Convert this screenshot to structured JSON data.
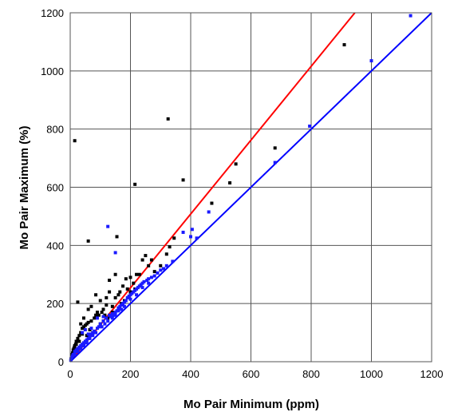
{
  "chart_data": {
    "type": "scatter",
    "title": "",
    "xlabel": "Mo Pair Minimum (ppm)",
    "ylabel": "Mo Pair Maximum (%)",
    "xlim": [
      0,
      1200
    ],
    "ylim": [
      0,
      1200
    ],
    "x_ticks": [
      0,
      200,
      400,
      600,
      800,
      1000,
      1200
    ],
    "y_ticks": [
      0,
      200,
      400,
      600,
      800,
      1000,
      1200
    ],
    "grid": true,
    "colors": {
      "grid": "#555555",
      "black_series": "#000000",
      "blue_series": "#1a1aff",
      "red_line": "#ff0000",
      "blue_line": "#0000ff"
    },
    "lines": [
      {
        "name": "red-reference-line",
        "color": "#ff0000",
        "x": [
          0,
          945
        ],
        "y": [
          0,
          1200
        ]
      },
      {
        "name": "blue-reference-line",
        "color": "#0000ff",
        "x": [
          0,
          1200
        ],
        "y": [
          0,
          1200
        ]
      }
    ],
    "series": [
      {
        "name": "black",
        "color": "#000000",
        "points": [
          [
            15,
            760
          ],
          [
            325,
            835
          ],
          [
            215,
            610
          ],
          [
            375,
            625
          ],
          [
            60,
            415
          ],
          [
            155,
            430
          ],
          [
            910,
            1090
          ],
          [
            680,
            735
          ],
          [
            550,
            680
          ],
          [
            530,
            615
          ],
          [
            470,
            545
          ],
          [
            345,
            425
          ],
          [
            330,
            395
          ],
          [
            250,
            365
          ],
          [
            240,
            350
          ],
          [
            270,
            350
          ],
          [
            280,
            310
          ],
          [
            220,
            300
          ],
          [
            200,
            290
          ],
          [
            185,
            285
          ],
          [
            175,
            260
          ],
          [
            160,
            230
          ],
          [
            150,
            220
          ],
          [
            130,
            240
          ],
          [
            120,
            195
          ],
          [
            110,
            180
          ],
          [
            90,
            170
          ],
          [
            85,
            160
          ],
          [
            80,
            150
          ],
          [
            70,
            140
          ],
          [
            60,
            135
          ],
          [
            55,
            130
          ],
          [
            50,
            125
          ],
          [
            45,
            120
          ],
          [
            40,
            115
          ],
          [
            35,
            100
          ],
          [
            30,
            90
          ],
          [
            25,
            80
          ],
          [
            20,
            70
          ],
          [
            18,
            60
          ],
          [
            14,
            50
          ],
          [
            12,
            45
          ],
          [
            10,
            40
          ],
          [
            8,
            30
          ],
          [
            6,
            25
          ],
          [
            5,
            20
          ],
          [
            4,
            15
          ],
          [
            3,
            10
          ],
          [
            25,
            205
          ],
          [
            45,
            150
          ],
          [
            35,
            130
          ],
          [
            60,
            180
          ],
          [
            70,
            190
          ],
          [
            85,
            230
          ],
          [
            100,
            210
          ],
          [
            120,
            220
          ],
          [
            140,
            190
          ],
          [
            165,
            240
          ],
          [
            190,
            250
          ],
          [
            210,
            270
          ],
          [
            230,
            300
          ],
          [
            260,
            330
          ],
          [
            300,
            330
          ],
          [
            320,
            370
          ],
          [
            150,
            300
          ],
          [
            130,
            280
          ],
          [
            100,
            130
          ],
          [
            110,
            140
          ],
          [
            125,
            150
          ],
          [
            65,
            110
          ],
          [
            75,
            100
          ],
          [
            55,
            90
          ],
          [
            40,
            95
          ],
          [
            30,
            70
          ],
          [
            20,
            60
          ],
          [
            15,
            55
          ],
          [
            10,
            30
          ],
          [
            7,
            20
          ],
          [
            95,
            160
          ],
          [
            105,
            170
          ],
          [
            115,
            160
          ],
          [
            140,
            170
          ],
          [
            170,
            200
          ],
          [
            180,
            210
          ],
          [
            200,
            240
          ],
          [
            215,
            250
          ]
        ]
      },
      {
        "name": "blue",
        "color": "#1a1aff",
        "points": [
          [
            1130,
            1190
          ],
          [
            1000,
            1035
          ],
          [
            795,
            810
          ],
          [
            680,
            685
          ],
          [
            460,
            515
          ],
          [
            405,
            455
          ],
          [
            375,
            445
          ],
          [
            400,
            430
          ],
          [
            420,
            425
          ],
          [
            125,
            465
          ],
          [
            150,
            375
          ],
          [
            340,
            345
          ],
          [
            310,
            320
          ],
          [
            290,
            305
          ],
          [
            280,
            295
          ],
          [
            260,
            285
          ],
          [
            240,
            270
          ],
          [
            230,
            260
          ],
          [
            220,
            250
          ],
          [
            210,
            240
          ],
          [
            200,
            230
          ],
          [
            190,
            220
          ],
          [
            180,
            205
          ],
          [
            170,
            195
          ],
          [
            165,
            190
          ],
          [
            160,
            185
          ],
          [
            155,
            175
          ],
          [
            150,
            170
          ],
          [
            140,
            165
          ],
          [
            130,
            160
          ],
          [
            120,
            150
          ],
          [
            110,
            140
          ],
          [
            100,
            130
          ],
          [
            95,
            120
          ],
          [
            90,
            115
          ],
          [
            80,
            105
          ],
          [
            75,
            100
          ],
          [
            70,
            95
          ],
          [
            65,
            90
          ],
          [
            60,
            80
          ],
          [
            55,
            75
          ],
          [
            50,
            70
          ],
          [
            45,
            65
          ],
          [
            40,
            60
          ],
          [
            35,
            55
          ],
          [
            30,
            50
          ],
          [
            25,
            45
          ],
          [
            20,
            40
          ],
          [
            15,
            35
          ],
          [
            10,
            25
          ],
          [
            8,
            20
          ],
          [
            5,
            15
          ],
          [
            3,
            10
          ],
          [
            2,
            5
          ],
          [
            135,
            155
          ],
          [
            145,
            160
          ],
          [
            175,
            200
          ],
          [
            185,
            210
          ],
          [
            195,
            225
          ],
          [
            205,
            235
          ],
          [
            215,
            245
          ],
          [
            225,
            255
          ],
          [
            235,
            265
          ],
          [
            245,
            275
          ],
          [
            255,
            280
          ],
          [
            270,
            290
          ],
          [
            300,
            315
          ],
          [
            320,
            330
          ],
          [
            180,
            190
          ],
          [
            160,
            175
          ],
          [
            170,
            180
          ],
          [
            150,
            160
          ],
          [
            140,
            150
          ],
          [
            125,
            140
          ],
          [
            115,
            130
          ],
          [
            105,
            120
          ],
          [
            85,
            100
          ],
          [
            75,
            90
          ],
          [
            65,
            80
          ],
          [
            55,
            65
          ],
          [
            45,
            55
          ],
          [
            35,
            45
          ],
          [
            25,
            35
          ],
          [
            15,
            25
          ],
          [
            50,
            110
          ],
          [
            40,
            100
          ],
          [
            60,
            95
          ],
          [
            70,
            115
          ],
          [
            90,
            150
          ],
          [
            110,
            155
          ],
          [
            200,
            215
          ],
          [
            240,
            255
          ],
          [
            260,
            270
          ],
          [
            220,
            230
          ]
        ]
      }
    ]
  }
}
